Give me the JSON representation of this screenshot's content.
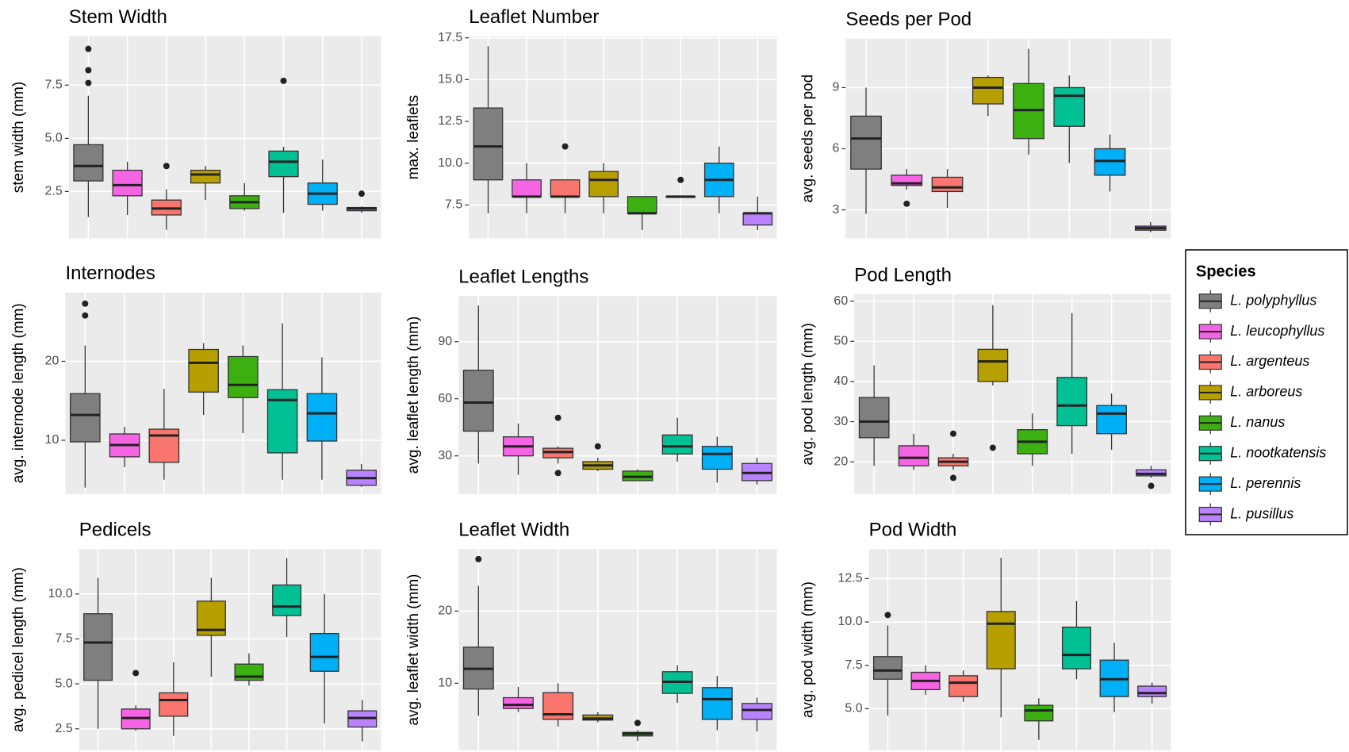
{
  "chart_data": [
    {
      "type": "box",
      "title": "Stem Width",
      "y_label": "stem width (mm)",
      "ylim": [
        0.3,
        9.8
      ],
      "yticks": [
        2.5,
        {
          "value": 5,
          "label": "5.0"
        },
        7.5
      ],
      "grid": true,
      "boxes": [
        {
          "stats": [
            1.3,
            3.0,
            3.7,
            4.7,
            7.0
          ],
          "outliers": [
            9.2,
            8.2,
            7.6
          ]
        },
        {
          "stats": [
            1.4,
            2.3,
            2.8,
            3.5,
            3.9
          ],
          "outliers": []
        },
        {
          "stats": [
            0.7,
            1.4,
            1.7,
            2.1,
            2.6
          ],
          "outliers": [
            3.7
          ]
        },
        {
          "stats": [
            2.1,
            2.9,
            3.3,
            3.5,
            3.7
          ],
          "outliers": []
        },
        {
          "stats": [
            1.6,
            1.7,
            2.0,
            2.3,
            2.9
          ],
          "outliers": []
        },
        {
          "stats": [
            1.5,
            3.2,
            3.9,
            4.4,
            4.6
          ],
          "outliers": [
            7.7
          ]
        },
        {
          "stats": [
            1.6,
            1.9,
            2.4,
            2.9,
            4.0
          ],
          "outliers": []
        },
        {
          "stats": [
            1.5,
            1.6,
            1.7,
            1.75,
            1.8
          ],
          "outliers": [
            2.4
          ]
        }
      ]
    },
    {
      "type": "box",
      "title": "Leaflet Number",
      "y_label": "max. leaflets",
      "ylim": [
        5.5,
        17.6
      ],
      "yticks": [
        7.5,
        {
          "value": 10,
          "label": "10.0"
        },
        12.5,
        {
          "value": 15,
          "label": "15.0"
        },
        17.5
      ],
      "grid": true,
      "boxes": [
        {
          "stats": [
            7,
            9,
            11,
            13.3,
            17
          ],
          "outliers": []
        },
        {
          "stats": [
            7,
            8,
            8,
            9,
            10
          ],
          "outliers": []
        },
        {
          "stats": [
            7,
            8,
            8,
            9,
            9
          ],
          "outliers": [
            11
          ]
        },
        {
          "stats": [
            7,
            8,
            9,
            9.5,
            10
          ],
          "outliers": []
        },
        {
          "stats": [
            6,
            7,
            7,
            8,
            8
          ],
          "outliers": []
        },
        {
          "stats": [
            8,
            8,
            8,
            8,
            8
          ],
          "outliers": [
            9
          ]
        },
        {
          "stats": [
            7,
            8,
            9,
            10,
            11
          ],
          "outliers": []
        },
        {
          "stats": [
            6,
            6.3,
            7,
            7,
            8
          ],
          "outliers": []
        }
      ]
    },
    {
      "type": "box",
      "title": "Seeds per Pod",
      "y_label": "avg. seeds per pod",
      "ylim": [
        1.6,
        11.4
      ],
      "yticks": [
        3,
        6,
        9
      ],
      "grid": true,
      "boxes": [
        {
          "stats": [
            2.8,
            5.0,
            6.5,
            7.6,
            9.0
          ],
          "outliers": []
        },
        {
          "stats": [
            4.0,
            4.2,
            4.3,
            4.7,
            5.0
          ],
          "outliers": [
            3.3
          ]
        },
        {
          "stats": [
            3.1,
            3.9,
            4.1,
            4.6,
            5.0
          ],
          "outliers": []
        },
        {
          "stats": [
            7.6,
            8.2,
            9.0,
            9.5,
            9.6
          ],
          "outliers": []
        },
        {
          "stats": [
            5.7,
            6.5,
            7.9,
            9.2,
            10.9
          ],
          "outliers": []
        },
        {
          "stats": [
            5.3,
            7.1,
            8.6,
            9.0,
            9.6
          ],
          "outliers": []
        },
        {
          "stats": [
            3.9,
            4.7,
            5.4,
            6.0,
            6.7
          ],
          "outliers": []
        },
        {
          "stats": [
            1.9,
            2.0,
            2.1,
            2.2,
            2.4
          ],
          "outliers": []
        }
      ]
    },
    {
      "type": "box",
      "title": "Internodes",
      "y_label": "avg. internode length (mm)",
      "ylim": [
        3.2,
        28.7
      ],
      "yticks": [
        10,
        20
      ],
      "grid": true,
      "boxes": [
        {
          "stats": [
            4.0,
            9.8,
            13.2,
            15.9,
            22.0
          ],
          "outliers": [
            27.3,
            25.8
          ]
        },
        {
          "stats": [
            6.6,
            7.9,
            9.4,
            10.8,
            11.7
          ],
          "outliers": []
        },
        {
          "stats": [
            5.0,
            7.2,
            10.6,
            11.4,
            16.5
          ],
          "outliers": []
        },
        {
          "stats": [
            13.2,
            16.1,
            19.8,
            21.5,
            22.3
          ],
          "outliers": []
        },
        {
          "stats": [
            10.9,
            15.4,
            17.0,
            20.6,
            22.0
          ],
          "outliers": []
        },
        {
          "stats": [
            5.0,
            8.4,
            15.1,
            16.4,
            24.8
          ],
          "outliers": []
        },
        {
          "stats": [
            5.0,
            9.9,
            13.4,
            15.9,
            20.5
          ],
          "outliers": []
        },
        {
          "stats": [
            4.1,
            4.3,
            5.2,
            6.2,
            7.0
          ],
          "outliers": []
        }
      ]
    },
    {
      "type": "box",
      "title": "Leaflet Lengths",
      "y_label": "avg. leaflet length (mm)",
      "ylim": [
        10,
        114
      ],
      "yticks": [
        30,
        60,
        90
      ],
      "grid": true,
      "boxes": [
        {
          "stats": [
            26,
            43,
            58,
            75,
            109
          ],
          "outliers": []
        },
        {
          "stats": [
            20,
            30,
            35,
            40,
            47
          ],
          "outliers": []
        },
        {
          "stats": [
            26,
            29,
            32,
            34,
            35
          ],
          "outliers": [
            50,
            21
          ]
        },
        {
          "stats": [
            22,
            23,
            25,
            27,
            29
          ],
          "outliers": [
            35
          ]
        },
        {
          "stats": [
            17,
            17,
            19,
            22,
            23
          ],
          "outliers": []
        },
        {
          "stats": [
            27,
            31,
            35,
            41,
            50
          ],
          "outliers": []
        },
        {
          "stats": [
            16,
            23,
            31,
            35,
            40
          ],
          "outliers": []
        },
        {
          "stats": [
            15,
            17,
            21,
            26,
            29
          ],
          "outliers": []
        }
      ]
    },
    {
      "type": "box",
      "title": "Pod Length",
      "y_label": "avg. pod length (mm)",
      "ylim": [
        12,
        61.7
      ],
      "yticks": [
        20,
        30,
        40,
        50,
        60
      ],
      "grid": true,
      "boxes": [
        {
          "stats": [
            19,
            26,
            30,
            36,
            44
          ],
          "outliers": []
        },
        {
          "stats": [
            18,
            19,
            21,
            24,
            27
          ],
          "outliers": []
        },
        {
          "stats": [
            18,
            19,
            20,
            21,
            22
          ],
          "outliers": [
            27,
            16
          ]
        },
        {
          "stats": [
            39,
            40,
            45,
            48,
            59
          ],
          "outliers": [
            23.5
          ]
        },
        {
          "stats": [
            19,
            22,
            25,
            28,
            32
          ],
          "outliers": []
        },
        {
          "stats": [
            22,
            29,
            34,
            41,
            57
          ],
          "outliers": []
        },
        {
          "stats": [
            23,
            27,
            32,
            34,
            37
          ],
          "outliers": []
        },
        {
          "stats": [
            16,
            16.5,
            17,
            18,
            19
          ],
          "outliers": [
            14
          ]
        }
      ]
    },
    {
      "type": "box",
      "title": "Pedicels",
      "y_label": "avg. pedicel length (mm)",
      "ylim": [
        1.3,
        12.5
      ],
      "yticks": [
        2.5,
        {
          "value": 5,
          "label": "5.0"
        },
        7.5,
        {
          "value": 10,
          "label": "10.0"
        }
      ],
      "grid": true,
      "boxes": [
        {
          "stats": [
            2.5,
            5.2,
            7.3,
            8.9,
            10.9
          ],
          "outliers": []
        },
        {
          "stats": [
            2.4,
            2.5,
            3.1,
            3.6,
            3.8
          ],
          "outliers": [
            5.6
          ]
        },
        {
          "stats": [
            2.1,
            3.2,
            4.1,
            4.5,
            6.2
          ],
          "outliers": []
        },
        {
          "stats": [
            5.4,
            7.7,
            8.0,
            9.6,
            10.9
          ],
          "outliers": []
        },
        {
          "stats": [
            4.9,
            5.2,
            5.4,
            6.1,
            6.7
          ],
          "outliers": []
        },
        {
          "stats": [
            7.6,
            8.8,
            9.3,
            10.5,
            12.0
          ],
          "outliers": []
        },
        {
          "stats": [
            2.8,
            5.7,
            6.5,
            7.8,
            10.0
          ],
          "outliers": []
        },
        {
          "stats": [
            1.8,
            2.6,
            3.1,
            3.5,
            4.1
          ],
          "outliers": []
        }
      ]
    },
    {
      "type": "box",
      "title": "Leaflet Width",
      "y_label": "avg. leaflet width (mm)",
      "ylim": [
        0.7,
        28.6
      ],
      "yticks": [
        10,
        20
      ],
      "grid": true,
      "boxes": [
        {
          "stats": [
            5.5,
            9.2,
            12.0,
            15.0,
            23.5
          ],
          "outliers": [
            27.2
          ]
        },
        {
          "stats": [
            6.0,
            6.5,
            7.0,
            8.0,
            9.5
          ],
          "outliers": []
        },
        {
          "stats": [
            4.0,
            5.0,
            5.7,
            8.7,
            10.0
          ],
          "outliers": []
        },
        {
          "stats": [
            4.6,
            4.9,
            5.1,
            5.6,
            6.0
          ],
          "outliers": []
        },
        {
          "stats": [
            2.0,
            2.7,
            3.0,
            3.2,
            3.5
          ],
          "outliers": [
            4.5
          ]
        },
        {
          "stats": [
            7.3,
            8.6,
            10.2,
            11.6,
            12.5
          ],
          "outliers": []
        },
        {
          "stats": [
            3.5,
            5.0,
            7.8,
            9.4,
            11.0
          ],
          "outliers": []
        },
        {
          "stats": [
            3.3,
            5.0,
            6.3,
            7.2,
            8.0
          ],
          "outliers": []
        }
      ]
    },
    {
      "type": "box",
      "title": "Pod Width",
      "y_label": "avg. pod width (mm)",
      "ylim": [
        2.6,
        14.2
      ],
      "yticks": [
        {
          "value": 5,
          "label": "5.0"
        },
        7.5,
        {
          "value": 10,
          "label": "10.0"
        },
        12.5
      ],
      "grid": true,
      "boxes": [
        {
          "stats": [
            4.6,
            6.7,
            7.2,
            8.0,
            9.8
          ],
          "outliers": [
            10.4
          ]
        },
        {
          "stats": [
            5.8,
            6.1,
            6.6,
            7.1,
            7.5
          ],
          "outliers": []
        },
        {
          "stats": [
            5.4,
            5.7,
            6.5,
            6.9,
            7.2
          ],
          "outliers": []
        },
        {
          "stats": [
            4.5,
            7.3,
            9.9,
            10.6,
            13.7
          ],
          "outliers": []
        },
        {
          "stats": [
            3.2,
            4.3,
            4.9,
            5.2,
            5.6
          ],
          "outliers": []
        },
        {
          "stats": [
            6.7,
            7.3,
            8.1,
            9.7,
            11.2
          ],
          "outliers": []
        },
        {
          "stats": [
            4.8,
            5.7,
            6.7,
            7.8,
            8.8
          ],
          "outliers": []
        },
        {
          "stats": [
            5.3,
            5.7,
            5.9,
            6.3,
            6.5
          ],
          "outliers": []
        }
      ]
    }
  ],
  "legend": {
    "title": "Species",
    "entries": [
      {
        "name": "L. polyphyllus",
        "color": "#7f7f7f"
      },
      {
        "name": "L. leucophyllus",
        "color": "#f564e3"
      },
      {
        "name": "L. argenteus",
        "color": "#f8766d"
      },
      {
        "name": "L. arboreus",
        "color": "#b79f00"
      },
      {
        "name": "L. nanus",
        "color": "#3cb010"
      },
      {
        "name": "L. nootkatensis",
        "color": "#00c094"
      },
      {
        "name": "L. perennis",
        "color": "#00b0f6"
      },
      {
        "name": "L. pusillus",
        "color": "#b983ff"
      }
    ]
  }
}
